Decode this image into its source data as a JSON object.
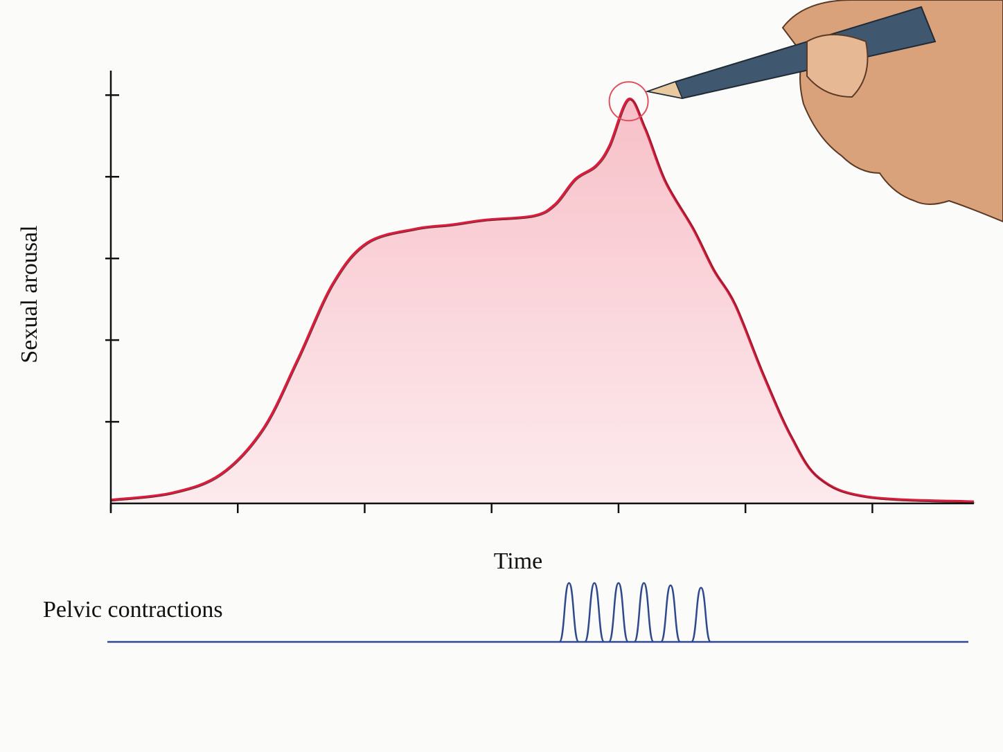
{
  "chart_data": [
    {
      "type": "area",
      "y_label": "Sexual arousal",
      "x_label": "Time",
      "color": "#d81e3c",
      "x": [
        0,
        0.49,
        0.87,
        1.2,
        1.47,
        1.75,
        2.02,
        2.4,
        2.68,
        2.95,
        3.33,
        3.5,
        3.66,
        3.82,
        3.93,
        4.08,
        4.21,
        4.37,
        4.59,
        4.75,
        4.92,
        5.14,
        5.36,
        5.58,
        5.96,
        6.8
      ],
      "values": [
        0.04,
        0.13,
        0.36,
        0.91,
        1.75,
        2.69,
        3.19,
        3.36,
        3.41,
        3.47,
        3.52,
        3.66,
        3.97,
        4.13,
        4.38,
        4.95,
        4.59,
        3.94,
        3.36,
        2.86,
        2.43,
        1.58,
        0.82,
        0.31,
        0.08,
        0.02
      ],
      "xlim": [
        0,
        6.8
      ],
      "ylim": [
        0,
        5.3
      ],
      "xticks": [
        0,
        1,
        2,
        3,
        4,
        5,
        6
      ],
      "yticks": [
        1,
        2,
        3,
        4,
        5
      ]
    },
    {
      "type": "pulse",
      "label": "Pelvic contractions",
      "color": "#2f4a8c",
      "x": [
        3.61,
        3.81,
        4.0,
        4.2,
        4.41,
        4.65
      ],
      "values": [
        1,
        1,
        1,
        1,
        0.96,
        0.92
      ],
      "xlim": [
        0,
        6.8
      ],
      "ylim": [
        0,
        1
      ]
    }
  ]
}
